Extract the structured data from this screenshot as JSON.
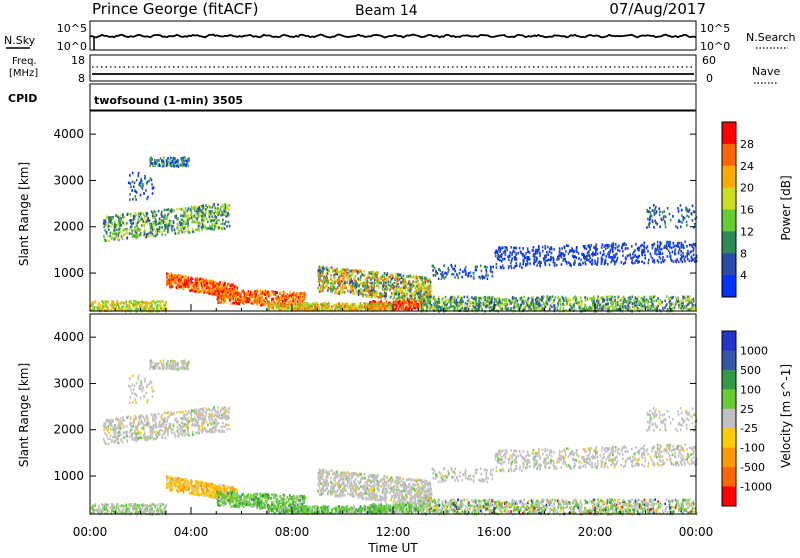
{
  "header": {
    "station": "Prince George (fitACF)",
    "beam": "Beam 14",
    "date": "07/Aug/2017"
  },
  "strip_nsky": {
    "left_label": "N.Sky",
    "tick_top": "10^5",
    "tick_bottom": "10^0",
    "right_label": "N.Search",
    "right_tick_top": "10^5",
    "right_tick_bottom": "10^0"
  },
  "strip_freq": {
    "left_label_1": "Freq.",
    "left_label_2": "[MHz]",
    "tick_top": "18",
    "tick_bottom": "8",
    "right_label": "Nave",
    "right_tick_top": "60",
    "right_tick_bottom": "0"
  },
  "strip_cpid": {
    "left_label": "CPID",
    "program": "twofsound (1-min) 3505"
  },
  "power_panel": {
    "ylabel": "Slant Range [km]",
    "yticks": [
      "1000",
      "2000",
      "3000",
      "4000"
    ],
    "colorbar_label": "Power [dB]",
    "colorbar_ticks": [
      "4",
      "8",
      "12",
      "16",
      "20",
      "24",
      "28"
    ],
    "colors": [
      "#0033ff",
      "#2b4da8",
      "#2e8b57",
      "#66cc33",
      "#ccdd22",
      "#ffaa00",
      "#ff6600",
      "#ff0000"
    ]
  },
  "velocity_panel": {
    "ylabel": "Slant Range [km]",
    "yticks": [
      "1000",
      "2000",
      "3000",
      "4000"
    ],
    "colorbar_label": "Velocity [m s^-1]",
    "colorbar_ticks": [
      "1000",
      "500",
      "100",
      "25",
      "-25",
      "-100",
      "-500",
      "-1000"
    ],
    "colors": [
      "#2233cc",
      "#3355aa",
      "#339944",
      "#66cc33",
      "#c0c0c0",
      "#ffcc00",
      "#ff9900",
      "#ff6600",
      "#ff0000"
    ]
  },
  "xaxis": {
    "label": "Time UT",
    "ticks": [
      "00:00",
      "04:00",
      "08:00",
      "12:00",
      "16:00",
      "20:00",
      "00:00"
    ]
  },
  "chart_data": {
    "type": "heatmap",
    "x_range_hours": [
      0,
      24
    ],
    "y_range_km": [
      180,
      4500
    ],
    "power_scatter_regions_hours_km": [
      {
        "x": [
          0.5,
          5.5
        ],
        "y": [
          1850,
          2400
        ],
        "level": "8-16 dB"
      },
      {
        "x": [
          2.3,
          3.9
        ],
        "y": [
          3350,
          3500
        ],
        "level": "4-12 dB"
      },
      {
        "x": [
          3.0,
          5.5
        ],
        "y": [
          600,
          900
        ],
        "level": "20-28 dB"
      },
      {
        "x": [
          5.0,
          8.0
        ],
        "y": [
          350,
          650
        ],
        "level": "20-28 dB"
      },
      {
        "x": [
          9.0,
          13.5
        ],
        "y": [
          500,
          1000
        ],
        "level": "8-24 dB"
      },
      {
        "x": [
          11.0,
          13.0
        ],
        "y": [
          250,
          400
        ],
        "level": "24-28 dB"
      },
      {
        "x": [
          16.0,
          24.0
        ],
        "y": [
          1200,
          1600
        ],
        "level": "4-8 dB"
      },
      {
        "x": [
          13.0,
          24.0
        ],
        "y": [
          200,
          500
        ],
        "level": "4-16 dB"
      }
    ]
  }
}
